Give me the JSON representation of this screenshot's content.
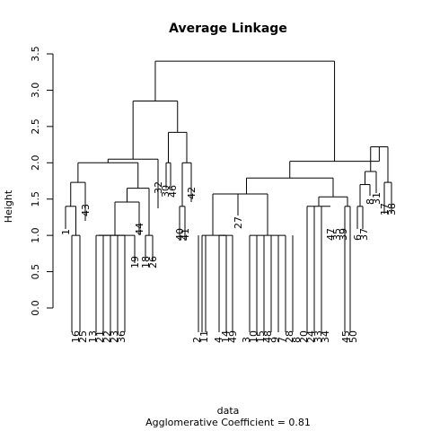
{
  "chart_data": {
    "type": "dendrogram",
    "title": "Average Linkage",
    "xlabel": "data",
    "ylabel": "Height",
    "subtitle": "Agglomerative Coefficient =  0.81",
    "yticks": [
      "0.0",
      "0.5",
      "1.0",
      "1.5",
      "2.0",
      "2.5",
      "3.0",
      "3.5"
    ],
    "ylim": [
      0,
      3.5
    ],
    "leaf_order": [
      "1",
      "16",
      "25",
      "13",
      "21",
      "22",
      "23",
      "36",
      "43",
      "19",
      "44",
      "18",
      "26",
      "32",
      "30",
      "46",
      "40",
      "41",
      "42",
      "2",
      "11",
      "4",
      "14",
      "49",
      "27",
      "3",
      "10",
      "15",
      "48",
      "9",
      "7",
      "28",
      "8",
      "20",
      "24",
      "33",
      "34",
      "47",
      "35",
      "39",
      "45",
      "50",
      "6",
      "37",
      "8",
      "31",
      "17",
      "38"
    ],
    "merge_heights": {
      "root": 3.4,
      "left_group": 2.85,
      "right_group": 2.22,
      "left_a": 2.05,
      "left_b": 2.42,
      "sub_1_16_25_43": 1.73,
      "sub_13_44_18_26": 1.65,
      "sub_13_44": 1.46,
      "sub_13_block": 1.0,
      "sub_18_26": 1.0,
      "sub_32_30_46": 2.0,
      "sub_40_41_42": 2.0,
      "sub_40_41": 1.4,
      "right_main": 2.02,
      "right_small": 1.88,
      "right_mid": 1.79,
      "sub_2_27": 1.57,
      "sub_47_block": 1.53,
      "sub_6_37": 1.7,
      "sub_17_38": 1.73
    }
  }
}
